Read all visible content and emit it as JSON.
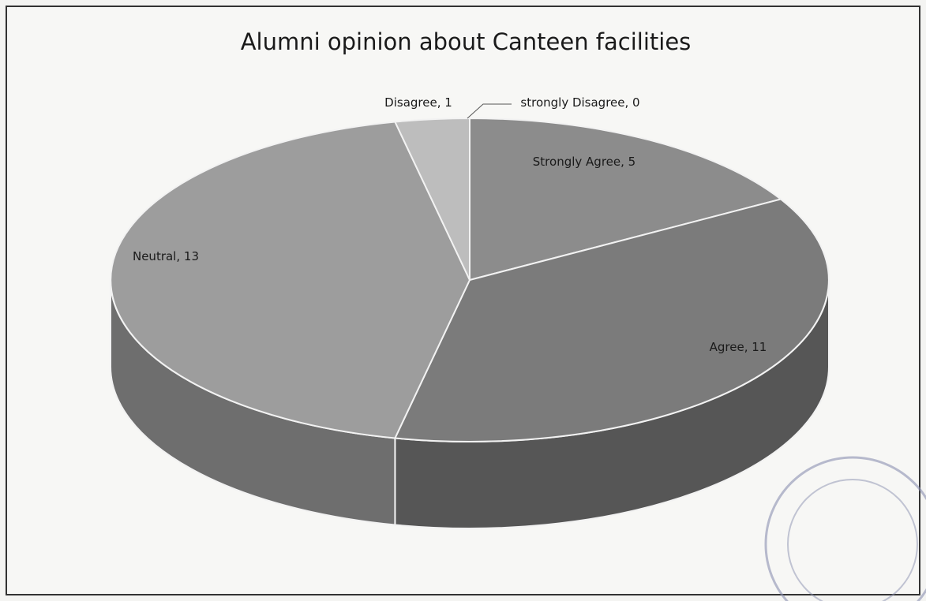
{
  "chart_data": {
    "type": "pie",
    "title": "Alumni opinion about Canteen facilities",
    "categories": [
      "Strongly Agree",
      "Agree",
      "Neutral",
      "Disagree",
      "strongly Disagree"
    ],
    "values": [
      5,
      11,
      13,
      1,
      0
    ],
    "colors": [
      "#8c8c8c",
      "#7b7b7b",
      "#9d9d9d",
      "#bdbdbd",
      "#a0a0a0"
    ]
  }
}
